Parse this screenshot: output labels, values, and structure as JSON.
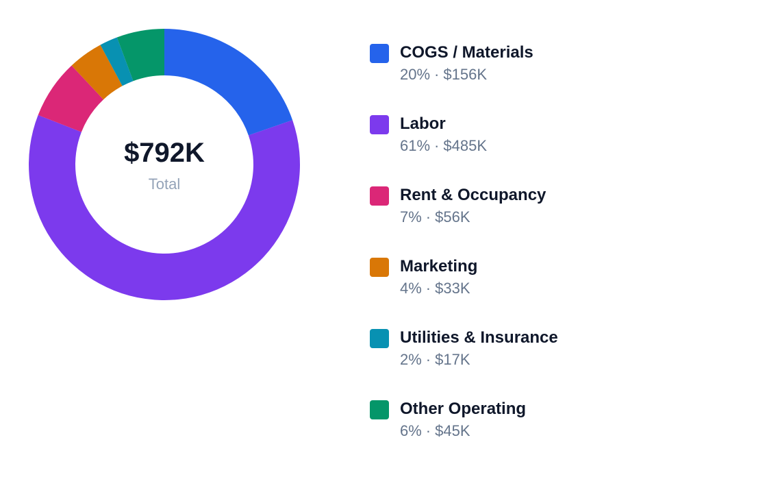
{
  "chart_data": {
    "type": "donut",
    "center_label": "$792K",
    "center_caption": "Total",
    "label_separator": "·",
    "categories": [
      "COGS / Materials",
      "Labor",
      "Rent & Occupancy",
      "Marketing",
      "Utilities & Insurance",
      "Other Operating"
    ],
    "values": [
      156000,
      485000,
      56000,
      33000,
      17000,
      45000
    ],
    "value_labels": [
      "$156K",
      "$485K",
      "$56K",
      "$33K",
      "$17K",
      "$45K"
    ],
    "percent_labels": [
      "20%",
      "61%",
      "7%",
      "4%",
      "2%",
      "6%"
    ],
    "colors": [
      "#2563eb",
      "#7c3aed",
      "#db2777",
      "#d97706",
      "#0891b2",
      "#059669"
    ],
    "legend": "right"
  }
}
